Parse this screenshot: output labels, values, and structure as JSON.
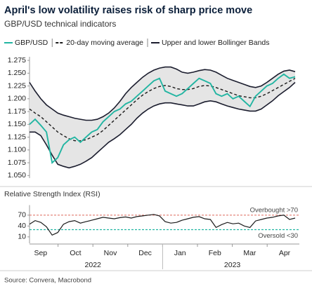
{
  "chart_data": [
    {
      "type": "line",
      "title": "April's low volatility raises risk of sharp price move",
      "subtitle": "GBP/USD technical indicators",
      "ylim": [
        1.045,
        1.282
      ],
      "yticks": [
        {
          "value": 1.05,
          "label": "1.050"
        },
        1.075,
        {
          "value": 1.1,
          "label": "1.100"
        },
        1.125,
        {
          "value": 1.15,
          "label": "1.150"
        },
        1.175,
        {
          "value": 1.2,
          "label": "1.200"
        },
        1.225,
        {
          "value": 1.25,
          "label": "1.250"
        },
        1.275
      ],
      "series": [
        {
          "name": "GBP/USD",
          "color": "#22b5a2",
          "style": "solid",
          "values": [
            1.15,
            1.16,
            1.148,
            1.135,
            1.075,
            1.085,
            1.11,
            1.12,
            1.125,
            1.115,
            1.125,
            1.135,
            1.14,
            1.155,
            1.165,
            1.175,
            1.18,
            1.19,
            1.195,
            1.205,
            1.215,
            1.225,
            1.235,
            1.24,
            1.215,
            1.21,
            1.205,
            1.21,
            1.22,
            1.23,
            1.24,
            1.235,
            1.23,
            1.21,
            1.205,
            1.21,
            1.2,
            1.205,
            1.195,
            1.185,
            1.205,
            1.215,
            1.225,
            1.23,
            1.24,
            1.248,
            1.24,
            1.243
          ]
        },
        {
          "name": "20-day moving average",
          "color": "#1a1a1a",
          "style": "dashed",
          "values": [
            1.18,
            1.172,
            1.165,
            1.155,
            1.145,
            1.135,
            1.128,
            1.122,
            1.118,
            1.118,
            1.12,
            1.125,
            1.13,
            1.138,
            1.148,
            1.158,
            1.168,
            1.178,
            1.188,
            1.198,
            1.207,
            1.214,
            1.22,
            1.224,
            1.226,
            1.224,
            1.22,
            1.218,
            1.218,
            1.22,
            1.224,
            1.226,
            1.225,
            1.222,
            1.218,
            1.214,
            1.21,
            1.206,
            1.204,
            1.202,
            1.202,
            1.205,
            1.21,
            1.216,
            1.222,
            1.228,
            1.234,
            1.24
          ]
        },
        {
          "name": "Upper and lower Bollinger Bands",
          "color": "#1b1d2e",
          "style": "band",
          "fill": "#e5e5e5",
          "upper": [
            1.232,
            1.215,
            1.2,
            1.188,
            1.18,
            1.172,
            1.168,
            1.165,
            1.162,
            1.16,
            1.158,
            1.158,
            1.16,
            1.165,
            1.172,
            1.182,
            1.195,
            1.21,
            1.222,
            1.232,
            1.242,
            1.25,
            1.256,
            1.26,
            1.262,
            1.262,
            1.258,
            1.252,
            1.25,
            1.252,
            1.255,
            1.257,
            1.256,
            1.252,
            1.246,
            1.24,
            1.236,
            1.232,
            1.228,
            1.224,
            1.222,
            1.225,
            1.232,
            1.24,
            1.248,
            1.254,
            1.256,
            1.253
          ],
          "lower": [
            1.135,
            1.135,
            1.128,
            1.11,
            1.09,
            1.072,
            1.068,
            1.065,
            1.068,
            1.072,
            1.078,
            1.085,
            1.095,
            1.105,
            1.115,
            1.122,
            1.13,
            1.14,
            1.15,
            1.162,
            1.172,
            1.18,
            1.186,
            1.19,
            1.192,
            1.192,
            1.19,
            1.188,
            1.186,
            1.186,
            1.19,
            1.194,
            1.196,
            1.194,
            1.19,
            1.186,
            1.183,
            1.18,
            1.178,
            1.176,
            1.176,
            1.18,
            1.188,
            1.196,
            1.206,
            1.214,
            1.222,
            1.232
          ]
        }
      ]
    },
    {
      "type": "line",
      "title": "Relative Strength Index (RSI)",
      "ylim": [
        0,
        90
      ],
      "yticks": [
        10,
        40,
        70
      ],
      "color": "#1a1a1a",
      "values": [
        45,
        55,
        50,
        38,
        15,
        22,
        45,
        52,
        55,
        48,
        52,
        56,
        60,
        64,
        62,
        60,
        63,
        65,
        62,
        66,
        68,
        70,
        72,
        68,
        52,
        48,
        50,
        56,
        60,
        64,
        66,
        60,
        58,
        36,
        44,
        50,
        46,
        48,
        40,
        36,
        54,
        58,
        62,
        64,
        68,
        70,
        58,
        62
      ],
      "reference_lines": [
        {
          "value": 70,
          "label": "Overbought >70",
          "color": "#e07a6e"
        },
        {
          "value": 30,
          "label": "Oversold <30",
          "color": "#22b5a2"
        }
      ],
      "months": [
        "Sep",
        "Oct",
        "Nov",
        "Dec",
        "Jan",
        "Feb",
        "Mar",
        "Apr"
      ],
      "years": [
        "2022",
        "2023"
      ]
    }
  ],
  "source": "Source: Convera, Macrobond"
}
